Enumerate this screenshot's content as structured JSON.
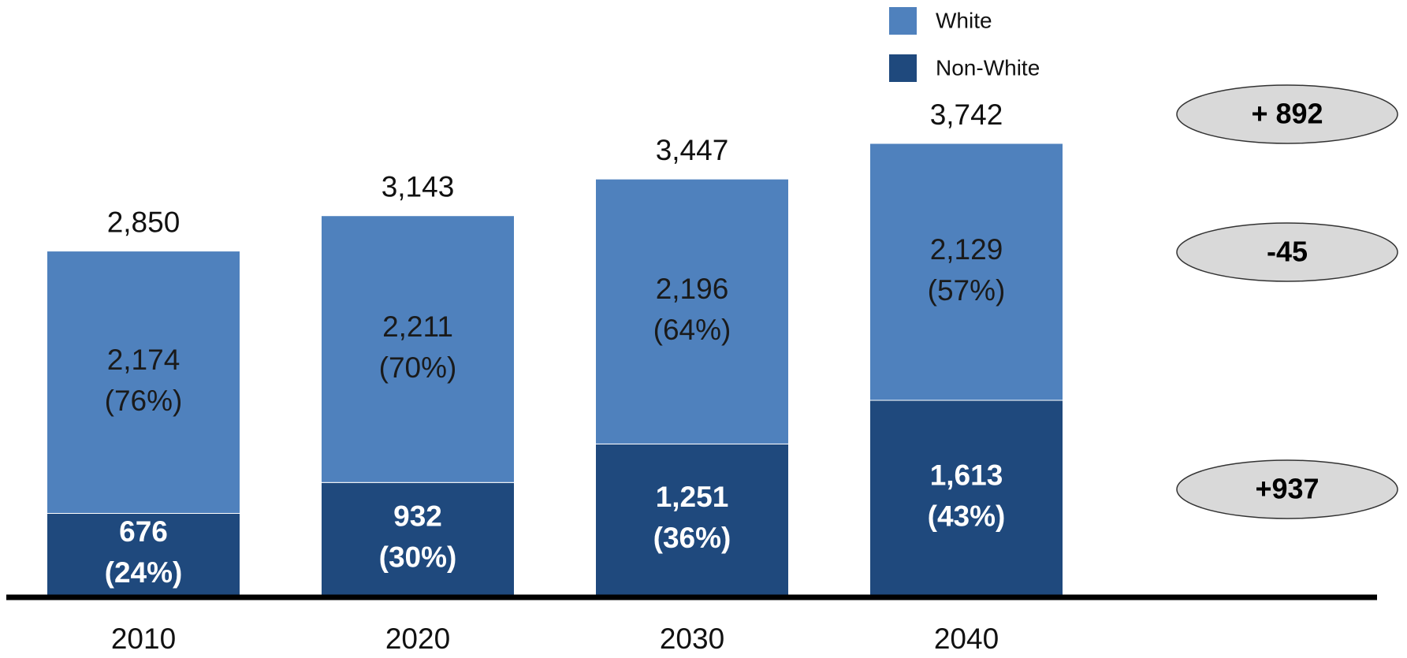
{
  "chart_data": {
    "type": "stacked_bar",
    "categories": [
      "2010",
      "2020",
      "2030",
      "2040"
    ],
    "series": [
      {
        "name": "Non-White",
        "color": "#1f497d",
        "values": [
          676,
          932,
          1251,
          1613
        ],
        "value_labels": [
          "676",
          "932",
          "1,251",
          "1,613"
        ],
        "percent_labels": [
          "(24%)",
          "(30%)",
          "(36%)",
          "(43%)"
        ]
      },
      {
        "name": "White",
        "color": "#4f81bd",
        "values": [
          2174,
          2211,
          2196,
          2129
        ],
        "value_labels": [
          "2,174",
          "2,211",
          "2,196",
          "2,129"
        ],
        "percent_labels": [
          "(76%)",
          "(70%)",
          "(64%)",
          "(57%)"
        ]
      }
    ],
    "totals": [
      2850,
      3143,
      3447,
      3742
    ],
    "total_labels": [
      "2,850",
      "3,143",
      "3,447",
      "3,742"
    ],
    "annotations": [
      "+ 892",
      "-45",
      "+937"
    ]
  }
}
